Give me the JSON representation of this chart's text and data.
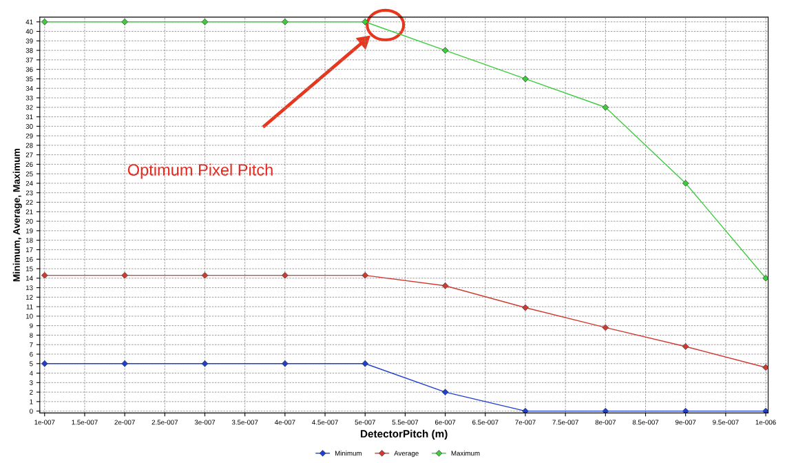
{
  "chart_data": {
    "type": "line",
    "xlabel": "DetectorPitch (m)",
    "ylabel": "Minimum, Average, Maximum",
    "x": [
      1e-07,
      2e-07,
      3e-07,
      4e-07,
      5e-07,
      6e-07,
      7e-07,
      8e-07,
      9e-07,
      1e-06
    ],
    "series": [
      {
        "name": "Minimum",
        "color": "#1f3fd0",
        "values": [
          5,
          5,
          5,
          5,
          5,
          2,
          0,
          0,
          0,
          0
        ]
      },
      {
        "name": "Average",
        "color": "#d03a30",
        "values": [
          14.3,
          14.3,
          14.3,
          14.3,
          14.3,
          13.2,
          10.9,
          8.8,
          6.8,
          4.6
        ]
      },
      {
        "name": "Maximum",
        "color": "#3ccc3c",
        "values": [
          41,
          41,
          41,
          41,
          41,
          38,
          35,
          32,
          24,
          14
        ]
      }
    ],
    "xlim": [
      9.4e-08,
      1.003e-06
    ],
    "xticks": [
      {
        "value": 1e-07,
        "label": "1e-007"
      },
      {
        "value": 1.5e-07,
        "label": "1.5e-007"
      },
      {
        "value": 2e-07,
        "label": "2e-007"
      },
      {
        "value": 2.5e-07,
        "label": "2.5e-007"
      },
      {
        "value": 3e-07,
        "label": "3e-007"
      },
      {
        "value": 3.5e-07,
        "label": "3.5e-007"
      },
      {
        "value": 4e-07,
        "label": "4e-007"
      },
      {
        "value": 4.5e-07,
        "label": "4.5e-007"
      },
      {
        "value": 5e-07,
        "label": "5e-007"
      },
      {
        "value": 5.5e-07,
        "label": "5.5e-007"
      },
      {
        "value": 6e-07,
        "label": "6e-007"
      },
      {
        "value": 6.5e-07,
        "label": "6.5e-007"
      },
      {
        "value": 7e-07,
        "label": "7e-007"
      },
      {
        "value": 7.5e-07,
        "label": "7.5e-007"
      },
      {
        "value": 8e-07,
        "label": "8e-007"
      },
      {
        "value": 8.5e-07,
        "label": "8.5e-007"
      },
      {
        "value": 9e-07,
        "label": "9e-007"
      },
      {
        "value": 9.5e-07,
        "label": "9.5e-007"
      },
      {
        "value": 1e-06,
        "label": "1e-006"
      }
    ],
    "ylim": [
      -0.2,
      41.5
    ],
    "yticks": [
      0,
      1,
      2,
      3,
      4,
      5,
      6,
      7,
      8,
      9,
      10,
      11,
      12,
      13,
      14,
      15,
      16,
      17,
      18,
      19,
      20,
      21,
      22,
      23,
      24,
      25,
      26,
      27,
      28,
      29,
      30,
      31,
      32,
      33,
      34,
      35,
      36,
      37,
      38,
      39,
      40,
      41
    ],
    "annotations": [
      "Optimum Pixel Pitch"
    ],
    "grid": true,
    "legend": "bottom",
    "marker": "diamond",
    "line_style": "solid"
  }
}
